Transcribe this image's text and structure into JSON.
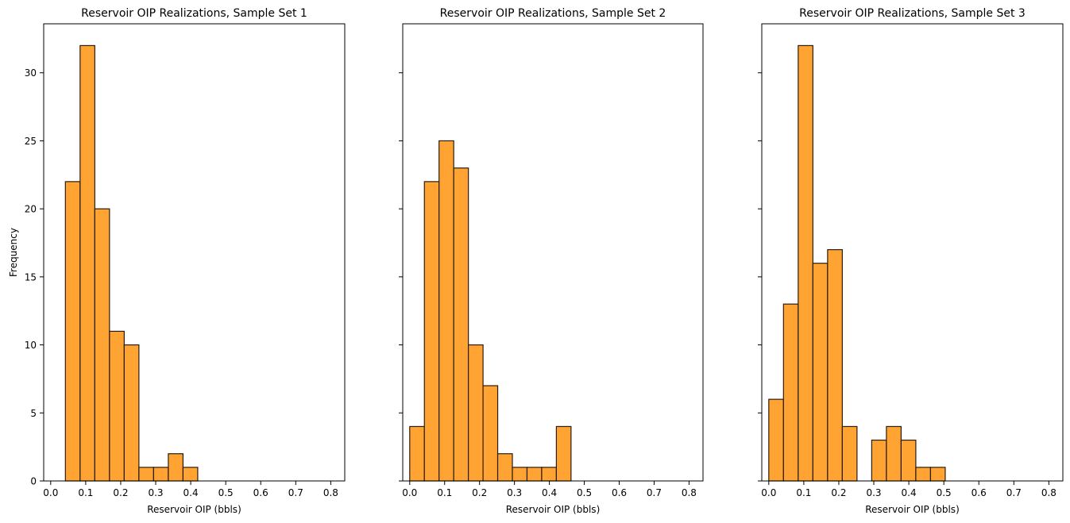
{
  "chart_data": [
    {
      "type": "bar",
      "title": "Reservoir OIP Realizations, Sample Set 1",
      "xlabel": "Reservoir OIP (bbls)",
      "ylabel": "Frequency",
      "xlim": [
        -0.02,
        0.84
      ],
      "ylim": [
        0,
        33.6
      ],
      "xticks": [
        "0.0",
        "0.1",
        "0.2",
        "0.3",
        "0.4",
        "0.5",
        "0.6",
        "0.7",
        "0.8"
      ],
      "yticks": [
        "0",
        "5",
        "10",
        "15",
        "20",
        "25",
        "30"
      ],
      "show_yticklabels": true,
      "grid": false,
      "bar_color": "#ffa333",
      "edge_color": "#2b1d0e",
      "bins": [
        {
          "x0": 0.042,
          "x1": 0.084,
          "count": 22
        },
        {
          "x0": 0.084,
          "x1": 0.126,
          "count": 32
        },
        {
          "x0": 0.126,
          "x1": 0.168,
          "count": 20
        },
        {
          "x0": 0.168,
          "x1": 0.21,
          "count": 11
        },
        {
          "x0": 0.21,
          "x1": 0.252,
          "count": 10
        },
        {
          "x0": 0.252,
          "x1": 0.294,
          "count": 1
        },
        {
          "x0": 0.294,
          "x1": 0.336,
          "count": 1
        },
        {
          "x0": 0.336,
          "x1": 0.378,
          "count": 2
        },
        {
          "x0": 0.378,
          "x1": 0.42,
          "count": 1
        }
      ]
    },
    {
      "type": "bar",
      "title": "Reservoir OIP Realizations, Sample Set 2",
      "xlabel": "Reservoir OIP (bbls)",
      "ylabel": "",
      "xlim": [
        -0.02,
        0.84
      ],
      "ylim": [
        0,
        33.6
      ],
      "xticks": [
        "0.0",
        "0.1",
        "0.2",
        "0.3",
        "0.4",
        "0.5",
        "0.6",
        "0.7",
        "0.8"
      ],
      "yticks": [
        "0",
        "5",
        "10",
        "15",
        "20",
        "25",
        "30"
      ],
      "show_yticklabels": false,
      "grid": false,
      "bar_color": "#ffa333",
      "edge_color": "#2b1d0e",
      "bins": [
        {
          "x0": 0.0,
          "x1": 0.042,
          "count": 4
        },
        {
          "x0": 0.042,
          "x1": 0.084,
          "count": 22
        },
        {
          "x0": 0.084,
          "x1": 0.126,
          "count": 25
        },
        {
          "x0": 0.126,
          "x1": 0.168,
          "count": 23
        },
        {
          "x0": 0.168,
          "x1": 0.21,
          "count": 10
        },
        {
          "x0": 0.21,
          "x1": 0.252,
          "count": 7
        },
        {
          "x0": 0.252,
          "x1": 0.294,
          "count": 2
        },
        {
          "x0": 0.294,
          "x1": 0.336,
          "count": 1
        },
        {
          "x0": 0.336,
          "x1": 0.378,
          "count": 1
        },
        {
          "x0": 0.378,
          "x1": 0.42,
          "count": 1
        },
        {
          "x0": 0.42,
          "x1": 0.462,
          "count": 4
        }
      ]
    },
    {
      "type": "bar",
      "title": "Reservoir OIP Realizations, Sample Set 3",
      "xlabel": "Reservoir OIP (bbls)",
      "ylabel": "",
      "xlim": [
        -0.02,
        0.84
      ],
      "ylim": [
        0,
        33.6
      ],
      "xticks": [
        "0.0",
        "0.1",
        "0.2",
        "0.3",
        "0.4",
        "0.5",
        "0.6",
        "0.7",
        "0.8"
      ],
      "yticks": [
        "0",
        "5",
        "10",
        "15",
        "20",
        "25",
        "30"
      ],
      "show_yticklabels": false,
      "grid": false,
      "bar_color": "#ffa333",
      "edge_color": "#2b1d0e",
      "bins": [
        {
          "x0": 0.0,
          "x1": 0.042,
          "count": 6
        },
        {
          "x0": 0.042,
          "x1": 0.084,
          "count": 13
        },
        {
          "x0": 0.084,
          "x1": 0.126,
          "count": 32
        },
        {
          "x0": 0.126,
          "x1": 0.168,
          "count": 16
        },
        {
          "x0": 0.168,
          "x1": 0.21,
          "count": 17
        },
        {
          "x0": 0.21,
          "x1": 0.252,
          "count": 4
        },
        {
          "x0": 0.252,
          "x1": 0.294,
          "count": 0
        },
        {
          "x0": 0.294,
          "x1": 0.336,
          "count": 3
        },
        {
          "x0": 0.336,
          "x1": 0.378,
          "count": 4
        },
        {
          "x0": 0.378,
          "x1": 0.42,
          "count": 3
        },
        {
          "x0": 0.42,
          "x1": 0.462,
          "count": 1
        },
        {
          "x0": 0.462,
          "x1": 0.504,
          "count": 1
        }
      ]
    }
  ]
}
